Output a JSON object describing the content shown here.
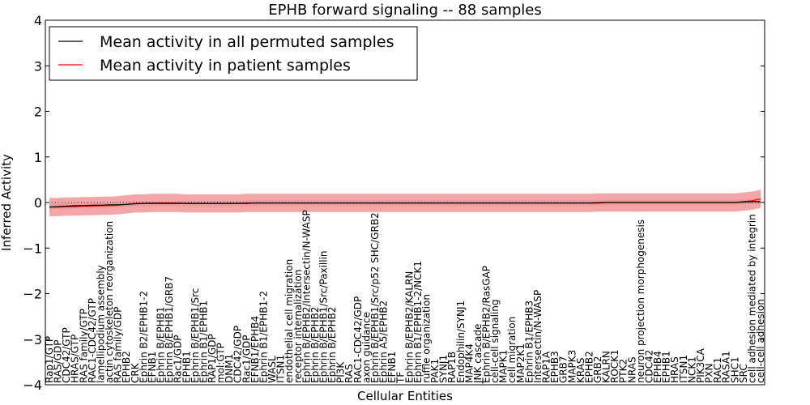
{
  "chart_data": {
    "type": "line",
    "title": "EPHB forward signaling -- 88 samples",
    "xlabel": "Cellular Entities",
    "ylabel": "Inferred Activity",
    "ylim": [
      -4,
      4
    ],
    "yticks": [
      -4,
      -3,
      -2,
      -1,
      0,
      1,
      2,
      3,
      4
    ],
    "ytick_labels": [
      "−4",
      "−3",
      "−2",
      "−1",
      "0",
      "1",
      "2",
      "3",
      "4"
    ],
    "legend_position": "top-left",
    "colors": {
      "permuted": "#000000",
      "patient": "#ff0000",
      "permuted_band": "#d9d9d9",
      "patient_band": "#f08080"
    },
    "categories": [
      "Rap1/GTP",
      "RAS/GDP",
      "CDC42/GTP",
      "HRAS/GTP",
      "RAS family/GTP",
      "RAC1-CDC42/GTP",
      "lamellipodium assembly",
      "actin cytoskeleton reorganization",
      "RAS family/GDP",
      "EPHB2",
      "CRK",
      "Ephrin B2/EPHB1-2",
      "EFNB1",
      "Ephrin B/EPHB1",
      "Ephrin B/EPHB1/GRB7",
      "Rac1/GDP",
      "EPHB1",
      "Ephrin B/EPHB1/Src",
      "Ephrin B1/EPHB1",
      "RAP1/GDP",
      "mol:GTP",
      "DNM1",
      "CDC42/GDP",
      "Rac1/GDP",
      "EFNB1/EPHB4",
      "Ephrin B1/EPHB1-2",
      "WASL",
      "ITSN1",
      "endothelial cell migration",
      "receptor internalization",
      "Ephrin B/EPHB2/Intersectin/N-WASP",
      "Ephrin B/EPHB2",
      "Ephrin B/EPHB1/Src/Paxillin",
      "Ephrin B/EPHB2",
      "PI3K",
      "RAS",
      "RAC1-CDC42/GDP",
      "axon guidance",
      "Ephrin B/EPHB1/Src/p52 SHC/GRB2",
      "Ephrin A5/EPHB2",
      "EFNB1",
      "TF",
      "Ephrin B/EPHB2/KALRN",
      "Ephrin B1/EPHB1-2/NCK1",
      "ruffle organization",
      "PAK1",
      "SYNJ1",
      "RAP1B",
      "Endophilin/SYNJ1",
      "MAP4K4",
      "JNK cascade",
      "Ephrin B/EPHB2/RasGAP",
      "cell-cell signaling",
      "MAPK1",
      "cell migration",
      "MAP2K1",
      "Ephrin B1/EPHB3",
      "Intersectin/N-WASP",
      "RAP1A",
      "EPHB3",
      "GRB7",
      "MAPK3",
      "KRAS",
      "EPHB2",
      "GRB2",
      "KALRN",
      "ROCK1",
      "PTK2",
      "NRAS",
      "neuron projection morphogenesis",
      "CDC42",
      "EPHB4",
      "EPHB1",
      "HRAS",
      "ITSN1",
      "NCK1",
      "PIK3CA",
      "PXN",
      "RAC1",
      "RASA1",
      "SHC1",
      "SRC",
      "cell adhesion mediated by integrin",
      "cell-cell adhesion"
    ],
    "series": [
      {
        "name": "Mean activity in all permuted samples",
        "color": "#000000",
        "band": 0.06,
        "values": [
          -0.1,
          -0.09,
          -0.08,
          -0.07,
          -0.07,
          -0.06,
          -0.06,
          -0.05,
          -0.05,
          -0.04,
          -0.03,
          -0.02,
          -0.02,
          -0.02,
          -0.02,
          -0.02,
          -0.02,
          -0.02,
          -0.02,
          -0.02,
          -0.02,
          -0.02,
          -0.02,
          -0.02,
          -0.01,
          -0.01,
          -0.01,
          -0.01,
          -0.01,
          -0.01,
          -0.01,
          -0.01,
          -0.01,
          -0.01,
          -0.01,
          -0.01,
          -0.01,
          -0.01,
          -0.01,
          -0.01,
          -0.01,
          -0.01,
          -0.01,
          -0.01,
          -0.01,
          -0.01,
          -0.01,
          -0.01,
          -0.01,
          -0.01,
          -0.01,
          -0.01,
          -0.01,
          -0.01,
          -0.01,
          -0.01,
          -0.01,
          -0.01,
          -0.01,
          -0.01,
          -0.01,
          -0.01,
          -0.01,
          -0.01,
          -0.01,
          0,
          0,
          0,
          0,
          0,
          0,
          0,
          0,
          0,
          0,
          0,
          0,
          0,
          0,
          0,
          0,
          0.01,
          0.02,
          0.02
        ]
      },
      {
        "name": "Mean activity in patient samples",
        "color": "#ff0000",
        "band": 0.2,
        "values": [
          -0.1,
          -0.1,
          -0.09,
          -0.09,
          -0.08,
          -0.08,
          -0.07,
          -0.07,
          -0.06,
          -0.04,
          -0.02,
          -0.02,
          -0.01,
          -0.01,
          -0.01,
          -0.01,
          -0.02,
          -0.02,
          -0.02,
          -0.02,
          -0.02,
          -0.02,
          -0.02,
          -0.01,
          -0.01,
          -0.01,
          -0.01,
          -0.01,
          -0.01,
          -0.01,
          -0.01,
          -0.01,
          -0.01,
          -0.01,
          -0.01,
          -0.01,
          -0.01,
          -0.01,
          -0.01,
          -0.01,
          -0.01,
          -0.01,
          -0.01,
          -0.01,
          -0.01,
          -0.01,
          -0.01,
          -0.01,
          -0.01,
          -0.01,
          -0.01,
          -0.01,
          -0.01,
          -0.01,
          -0.01,
          -0.01,
          -0.01,
          -0.01,
          -0.01,
          -0.01,
          -0.01,
          -0.01,
          -0.01,
          -0.01,
          0,
          0,
          0,
          0,
          0,
          0,
          0,
          0,
          0,
          0,
          0,
          0,
          0,
          0,
          0,
          0,
          0,
          0.02,
          0.04,
          0.08
        ]
      }
    ]
  }
}
